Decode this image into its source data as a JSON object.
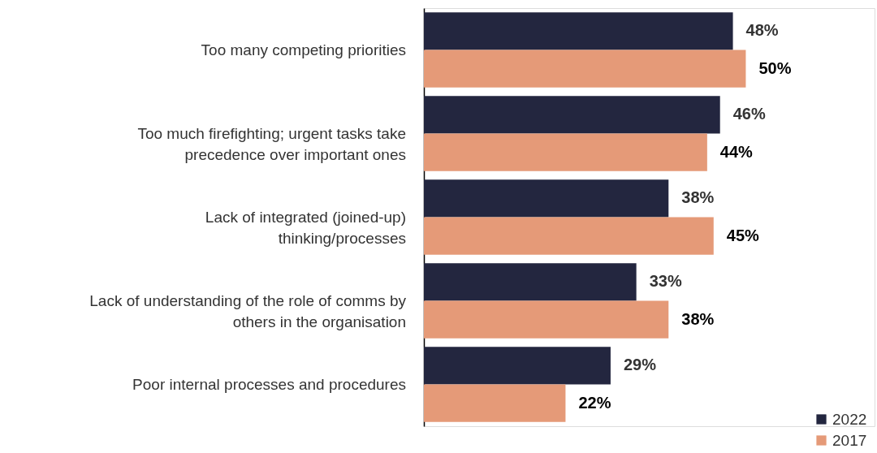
{
  "chart_data": {
    "type": "bar",
    "orientation": "horizontal",
    "categories": [
      "Too many competing priorities",
      "Too much firefighting; urgent tasks take precedence over important ones",
      "Lack of integrated (joined-up) thinking/processes",
      "Lack of understanding of the role of comms by others in the organisation",
      "Poor internal processes and procedures"
    ],
    "series": [
      {
        "name": "2022",
        "color": "#23263f",
        "values": [
          48,
          46,
          38,
          33,
          29
        ],
        "value_labels": [
          "48%",
          "46%",
          "38%",
          "33%",
          "29%"
        ]
      },
      {
        "name": "2017",
        "color": "#e59a78",
        "values": [
          50,
          44,
          45,
          38,
          22
        ],
        "value_labels": [
          "50%",
          "44%",
          "45%",
          "38%",
          "22%"
        ]
      }
    ],
    "legend": "bottom right",
    "grid": false
  }
}
